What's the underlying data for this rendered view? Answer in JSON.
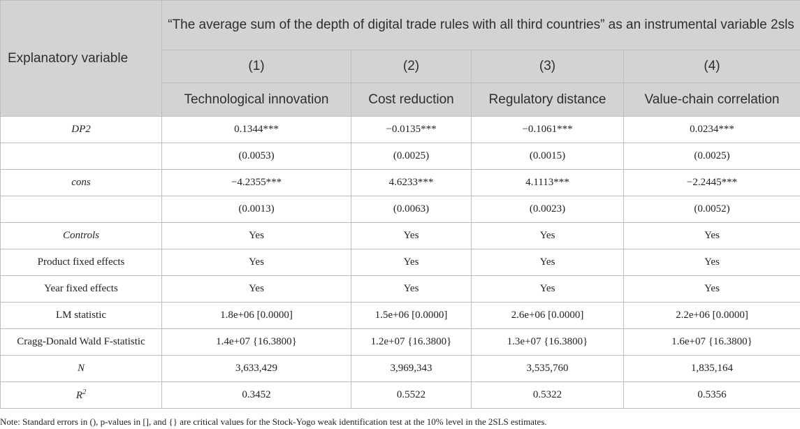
{
  "table": {
    "row_header_label": "Explanatory variable",
    "group_header": "“The average sum of the depth of digital trade rules with all third countries” as an instrumental variable 2sls",
    "column_numbers": [
      "(1)",
      "(2)",
      "(3)",
      "(4)"
    ],
    "column_names": [
      "Technological innovation",
      "Cost reduction",
      "Regulatory distance",
      "Value-chain correlation"
    ],
    "rows": [
      {
        "label": "DP2",
        "italic": true,
        "cells": [
          "0.1344***",
          "−0.0135***",
          "−0.1061***",
          "0.0234***"
        ]
      },
      {
        "label": "",
        "italic": false,
        "cells": [
          "(0.0053)",
          "(0.0025)",
          "(0.0015)",
          "(0.0025)"
        ]
      },
      {
        "label": "cons",
        "italic": true,
        "cells": [
          "−4.2355***",
          "4.6233***",
          "4.1113***",
          "−2.2445***"
        ]
      },
      {
        "label": "",
        "italic": false,
        "cells": [
          "(0.0013)",
          "(0.0063)",
          "(0.0023)",
          "(0.0052)"
        ]
      },
      {
        "label": "Controls",
        "italic": true,
        "cells": [
          "Yes",
          "Yes",
          "Yes",
          "Yes"
        ]
      },
      {
        "label": "Product fixed effects",
        "italic": false,
        "cells": [
          "Yes",
          "Yes",
          "Yes",
          "Yes"
        ]
      },
      {
        "label": "Year fixed effects",
        "italic": false,
        "cells": [
          "Yes",
          "Yes",
          "Yes",
          "Yes"
        ]
      },
      {
        "label": "LM statistic",
        "italic": false,
        "cells": [
          "1.8e+06 [0.0000]",
          "1.5e+06 [0.0000]",
          "2.6e+06 [0.0000]",
          "2.2e+06 [0.0000]"
        ]
      },
      {
        "label": "Cragg-Donald Wald F-statistic",
        "italic": false,
        "cells": [
          "1.4e+07 {16.3800}",
          "1.2e+07 {16.3800}",
          "1.3e+07 {16.3800}",
          "1.6e+07 {16.3800}"
        ]
      },
      {
        "label": "N",
        "italic": true,
        "cells": [
          "3,633,429",
          "3,969,343",
          "3,535,760",
          "1,835,164"
        ]
      },
      {
        "label": "R",
        "label_sup": "2",
        "italic": true,
        "cells": [
          "0.3452",
          "0.5522",
          "0.5322",
          "0.5356"
        ]
      }
    ]
  },
  "note": "Note: Standard errors in (), p-values in [], and {} are critical values for the Stock-Yogo weak identification test at the 10% level in the 2SLS estimates.",
  "colors": {
    "header_bg": "#d3d3d3",
    "border": "#bdbdbd"
  }
}
